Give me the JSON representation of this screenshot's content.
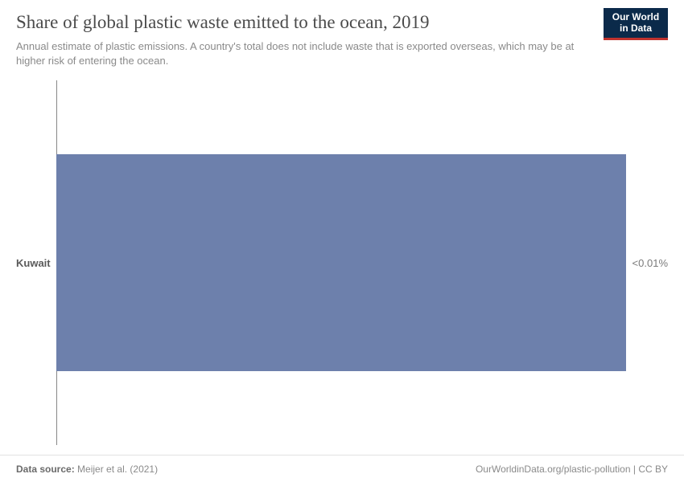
{
  "header": {
    "title": "Share of global plastic waste emitted to the ocean, 2019",
    "subtitle": "Annual estimate of plastic emissions. A country's total does not include waste that is exported overseas, which may be at higher risk of entering the ocean."
  },
  "logo": {
    "line1": "Our World",
    "line2": "in Data",
    "bg_color": "#0b2a4a",
    "accent_color": "#c0332e",
    "text_color": "#ffffff"
  },
  "chart": {
    "type": "bar",
    "orientation": "horizontal",
    "background_color": "#ffffff",
    "axis_line_color": "#888888",
    "bar_color": "#6d80ac",
    "label_fontsize": 13,
    "label_color": "#5a5a5a",
    "value_fontsize": 13,
    "value_color": "#7a7a7a",
    "bars": [
      {
        "label": "Kuwait",
        "value_text": "<0.01%",
        "width_fraction": 0.94
      }
    ]
  },
  "footer": {
    "source_prefix": "Data source:",
    "source_text": "Meijer et al. (2021)",
    "link_text": "OurWorldinData.org/plastic-pollution",
    "license_text": "CC BY",
    "separator": " | "
  }
}
